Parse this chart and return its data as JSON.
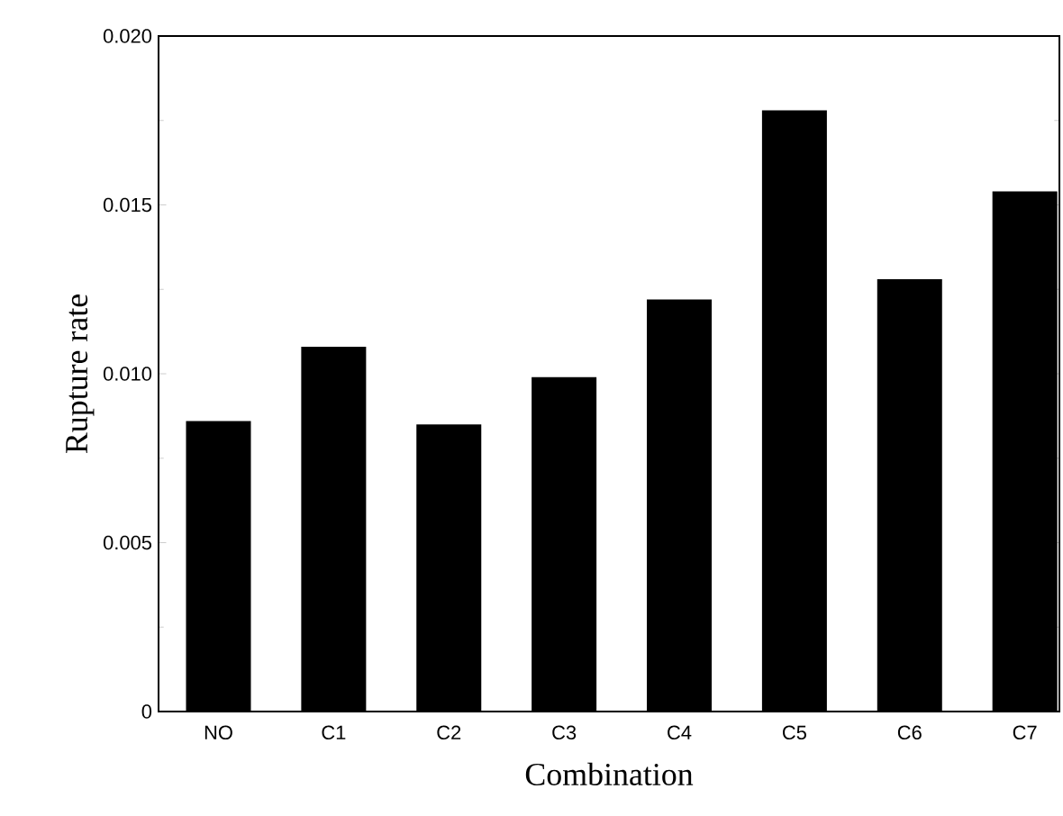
{
  "chart_data": {
    "type": "bar",
    "xlabel": "Combination",
    "ylabel": "Rupture rate",
    "categories": [
      "NO",
      "C1",
      "C2",
      "C3",
      "C4",
      "C5",
      "C6",
      "C7"
    ],
    "values": [
      0.0086,
      0.0108,
      0.0085,
      0.0099,
      0.0122,
      0.0178,
      0.0128,
      0.0154
    ],
    "color": "#000000",
    "ylim": [
      0,
      0.02
    ],
    "yticks": [
      0,
      {
        "value": 0.005,
        "label": "0.005"
      },
      {
        "value": 0.01,
        "label": "0.010"
      },
      {
        "value": 0.015,
        "label": "0.015"
      },
      {
        "value": 0.02,
        "label": "0.020"
      }
    ],
    "grid": false
  }
}
